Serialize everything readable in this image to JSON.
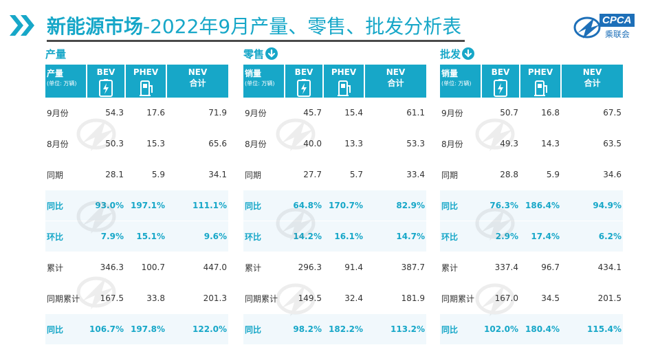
{
  "header": {
    "title_bold": "新能源市场",
    "title_rest": "-2022年9月产量、零售、批发分析表",
    "logo_text": "CPCA",
    "logo_sub": "乘联会",
    "accent": "#17a7c8"
  },
  "panels": [
    {
      "title": "产量",
      "has_down_icon": false,
      "header": {
        "label": "产量",
        "unit": "(单位: 万辆)",
        "bev": "BEV",
        "phev": "PHEV",
        "nev": "NEV",
        "nev2": "合计"
      },
      "rows": [
        {
          "label": "9月份",
          "bev": "54.3",
          "phev": "17.6",
          "nev": "71.9",
          "highlight": false
        },
        {
          "label": "8月份",
          "bev": "50.3",
          "phev": "15.3",
          "nev": "65.6",
          "highlight": false
        },
        {
          "label": "同期",
          "bev": "28.1",
          "phev": "5.9",
          "nev": "34.1",
          "highlight": false
        },
        {
          "label": "同比",
          "bev": "93.0%",
          "phev": "197.1%",
          "nev": "111.1%",
          "highlight": true
        },
        {
          "label": "环比",
          "bev": "7.9%",
          "phev": "15.1%",
          "nev": "9.6%",
          "highlight": true
        },
        {
          "label": "累计",
          "bev": "346.3",
          "phev": "100.7",
          "nev": "447.0",
          "highlight": false
        },
        {
          "label": "同期累计",
          "bev": "167.5",
          "phev": "33.8",
          "nev": "201.3",
          "highlight": false
        },
        {
          "label": "同比",
          "bev": "106.7%",
          "phev": "197.8%",
          "nev": "122.0%",
          "highlight": true
        }
      ]
    },
    {
      "title": "零售",
      "has_down_icon": true,
      "header": {
        "label": "销量",
        "unit": "(单位: 万辆)",
        "bev": "BEV",
        "phev": "PHEV",
        "nev": "NEV",
        "nev2": "合计"
      },
      "rows": [
        {
          "label": "9月份",
          "bev": "45.7",
          "phev": "15.4",
          "nev": "61.1",
          "highlight": false
        },
        {
          "label": "8月份",
          "bev": "40.0",
          "phev": "13.3",
          "nev": "53.3",
          "highlight": false
        },
        {
          "label": "同期",
          "bev": "27.7",
          "phev": "5.7",
          "nev": "33.4",
          "highlight": false
        },
        {
          "label": "同比",
          "bev": "64.8%",
          "phev": "170.7%",
          "nev": "82.9%",
          "highlight": true
        },
        {
          "label": "环比",
          "bev": "14.2%",
          "phev": "16.1%",
          "nev": "14.7%",
          "highlight": true
        },
        {
          "label": "累计",
          "bev": "296.3",
          "phev": "91.4",
          "nev": "387.7",
          "highlight": false
        },
        {
          "label": "同期累计",
          "bev": "149.5",
          "phev": "32.4",
          "nev": "181.9",
          "highlight": false
        },
        {
          "label": "同比",
          "bev": "98.2%",
          "phev": "182.2%",
          "nev": "113.2%",
          "highlight": true
        }
      ]
    },
    {
      "title": "批发",
      "has_down_icon": true,
      "header": {
        "label": "销量",
        "unit": "(单位: 万辆)",
        "bev": "BEV",
        "phev": "PHEV",
        "nev": "NEV",
        "nev2": "合计"
      },
      "rows": [
        {
          "label": "9月份",
          "bev": "50.7",
          "phev": "16.8",
          "nev": "67.5",
          "highlight": false
        },
        {
          "label": "8月份",
          "bev": "49.3",
          "phev": "14.3",
          "nev": "63.5",
          "highlight": false
        },
        {
          "label": "同期",
          "bev": "28.8",
          "phev": "5.9",
          "nev": "34.6",
          "highlight": false
        },
        {
          "label": "同比",
          "bev": "76.3%",
          "phev": "186.4%",
          "nev": "94.9%",
          "highlight": true
        },
        {
          "label": "环比",
          "bev": "2.9%",
          "phev": "17.4%",
          "nev": "6.2%",
          "highlight": true
        },
        {
          "label": "累计",
          "bev": "337.4",
          "phev": "96.7",
          "nev": "434.1",
          "highlight": false
        },
        {
          "label": "同期累计",
          "bev": "167.0",
          "phev": "34.5",
          "nev": "201.5",
          "highlight": false
        },
        {
          "label": "同比",
          "bev": "102.0%",
          "phev": "180.4%",
          "nev": "115.4%",
          "highlight": true
        }
      ]
    }
  ]
}
